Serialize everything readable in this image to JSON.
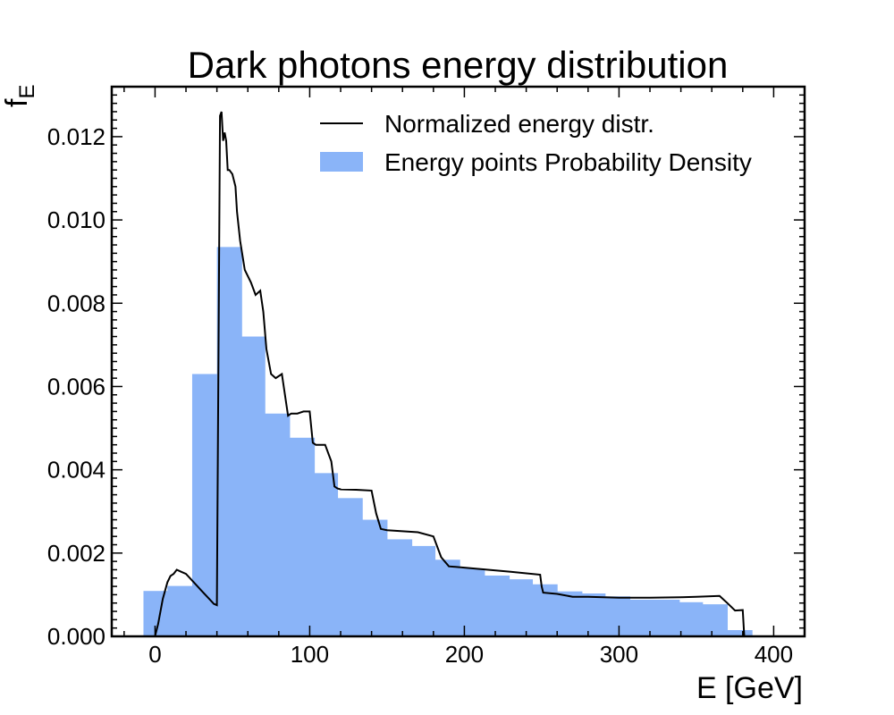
{
  "chart_data": {
    "type": "bar",
    "title": "Dark photons energy distribution",
    "xlabel": "E [GeV]",
    "ylabel": {
      "main": "f",
      "subscript": "E"
    },
    "xlim": [
      -28,
      420
    ],
    "ylim": [
      0,
      0.0132
    ],
    "xticks": [
      0,
      100,
      200,
      300,
      400
    ],
    "xtick_labels": [
      "0",
      "100",
      "200",
      "300",
      "400"
    ],
    "yticks": [
      0,
      0.002,
      0.004,
      0.006,
      0.008,
      0.01,
      0.012
    ],
    "ytick_labels": [
      "0.000",
      "0.002",
      "0.004",
      "0.006",
      "0.008",
      "0.010",
      "0.012"
    ],
    "grid": false,
    "legend_position": "top-right",
    "colors": {
      "histogram": "#8ab4f8",
      "line": "#000000",
      "axes": "#000000"
    },
    "series": [
      {
        "name": "Energy points Probability Density",
        "kind": "histogram",
        "bin_edges": [
          -7.5,
          8,
          24,
          40,
          56,
          71,
          87,
          103,
          118,
          134,
          150,
          166,
          181,
          197,
          213,
          229,
          244,
          260,
          276,
          291,
          307,
          323,
          339,
          354,
          370,
          386
        ],
        "values": [
          0.00109,
          0.00121,
          0.0063,
          0.00935,
          0.0072,
          0.00535,
          0.00477,
          0.00392,
          0.00332,
          0.0028,
          0.00233,
          0.00217,
          0.00184,
          0.00163,
          0.00146,
          0.00137,
          0.00125,
          0.00108,
          0.00103,
          0.00096,
          0.00088,
          0.00088,
          0.00082,
          0.00077,
          0.00015
        ]
      },
      {
        "name": "Normalized energy distr.",
        "kind": "line",
        "x": [
          0,
          2,
          5,
          8,
          10,
          12,
          14,
          17,
          20,
          25,
          30,
          35,
          38,
          40,
          42,
          43,
          44,
          45,
          46,
          47,
          48,
          50,
          52,
          53,
          55,
          58,
          62,
          65,
          68,
          70,
          72,
          75,
          78,
          82,
          86,
          88,
          92,
          96,
          100,
          102,
          104,
          110,
          114,
          116,
          118,
          120,
          130,
          140,
          143,
          146,
          150,
          170,
          180,
          185,
          190,
          200,
          230,
          249,
          250,
          251,
          260,
          270,
          280,
          300,
          320,
          340,
          350,
          365,
          370,
          375,
          380,
          381
        ],
        "y": [
          0.0,
          0.0003,
          0.0009,
          0.0013,
          0.00145,
          0.0015,
          0.0016,
          0.00155,
          0.0015,
          0.0013,
          0.0011,
          0.0009,
          0.00078,
          0.00075,
          0.0125,
          0.0126,
          0.0119,
          0.0121,
          0.0119,
          0.0112,
          0.0112,
          0.0111,
          0.0108,
          0.0102,
          0.0095,
          0.0088,
          0.0085,
          0.0082,
          0.0083,
          0.0078,
          0.0069,
          0.0063,
          0.0062,
          0.0063,
          0.0053,
          0.00535,
          0.00535,
          0.0054,
          0.0054,
          0.00465,
          0.0046,
          0.0046,
          0.0042,
          0.0036,
          0.00355,
          0.00353,
          0.00352,
          0.0035,
          0.00295,
          0.00258,
          0.00255,
          0.0025,
          0.0024,
          0.0019,
          0.00168,
          0.00165,
          0.00155,
          0.00148,
          0.0012,
          0.00105,
          0.00102,
          0.00095,
          0.00095,
          0.00093,
          0.00093,
          0.00094,
          0.00095,
          0.00097,
          0.0008,
          0.00062,
          0.00063,
          0.0
        ]
      }
    ]
  }
}
